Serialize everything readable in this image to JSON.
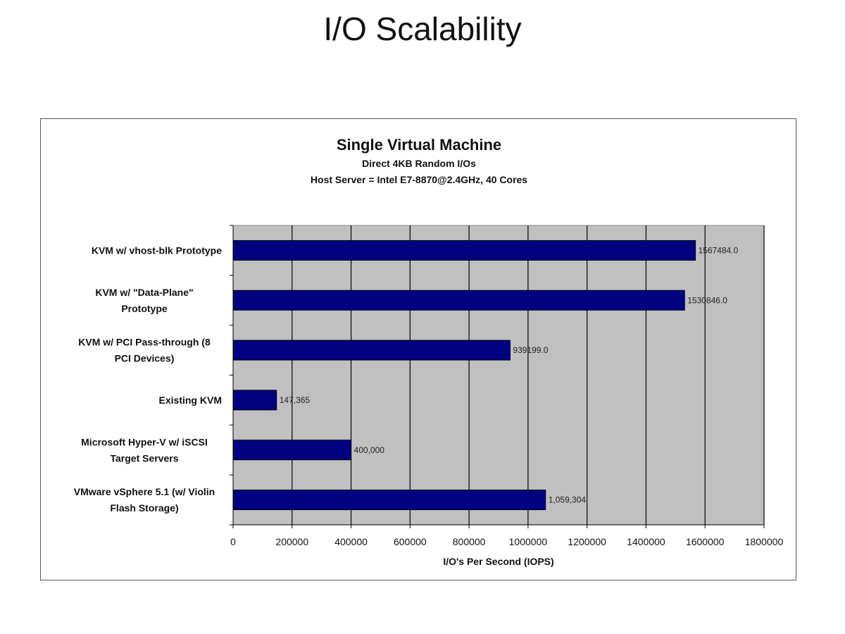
{
  "slide_title": "I/O Scalability",
  "chart_data": {
    "type": "bar",
    "orientation": "horizontal",
    "title": "Single Virtual Machine",
    "subtitle": [
      "Direct 4KB Random I/Os",
      "Host Server = Intel E7-8870@2.4GHz, 40 Cores"
    ],
    "categories": [
      [
        "KVM w/ vhost-blk Prototype"
      ],
      [
        "KVM w/ \"Data-Plane\"",
        "Prototype"
      ],
      [
        "KVM w/ PCI Pass-through (8",
        "PCI Devices)"
      ],
      [
        "Existing KVM"
      ],
      [
        "Microsoft Hyper-V w/ iSCSI",
        "Target Servers"
      ],
      [
        "VMware vSphere 5.1 (w/ Violin",
        "Flash Storage)"
      ]
    ],
    "values": [
      1567484,
      1530846,
      939199,
      147365,
      400000,
      1059304
    ],
    "data_labels": [
      "1567484.0",
      "1530846.0",
      "939199.0",
      "147,365",
      "400,000",
      "1,059,304"
    ],
    "xlabel": "I/O's Per Second (IOPS)",
    "ylabel": "",
    "xlim": [
      0,
      1800000
    ],
    "x_ticks": [
      "0",
      "200000",
      "400000",
      "600000",
      "800000",
      "1000000",
      "1200000",
      "1400000",
      "1600000",
      "1800000"
    ],
    "grid": true,
    "colors": {
      "bar": "#000080",
      "plot_bg": "#c0c0c0"
    }
  }
}
